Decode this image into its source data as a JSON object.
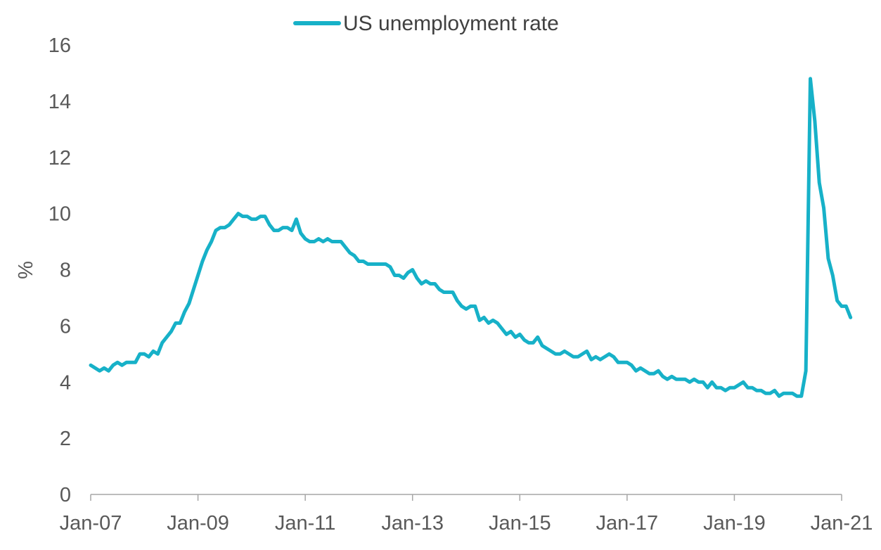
{
  "chart_data": {
    "type": "line",
    "title": "",
    "xlabel": "",
    "ylabel": "%",
    "ylim": [
      0,
      16
    ],
    "y_ticks": [
      "0",
      "2",
      "4",
      "6",
      "8",
      "10",
      "12",
      "14",
      "16"
    ],
    "x_ticks": [
      "Jan-07",
      "Jan-09",
      "Jan-11",
      "Jan-13",
      "Jan-15",
      "Jan-17",
      "Jan-19",
      "Jan-21"
    ],
    "x_range": [
      "2007-01",
      "2021-01"
    ],
    "grid": false,
    "legend_position": "top-center",
    "series": [
      {
        "name": "US unemployment rate",
        "color": "#17B1C8",
        "start": "2007-01",
        "frequency": "monthly",
        "values": [
          4.6,
          4.5,
          4.4,
          4.5,
          4.4,
          4.6,
          4.7,
          4.6,
          4.7,
          4.7,
          4.7,
          5.0,
          5.0,
          4.9,
          5.1,
          5.0,
          5.4,
          5.6,
          5.8,
          6.1,
          6.1,
          6.5,
          6.8,
          7.3,
          7.8,
          8.3,
          8.7,
          9.0,
          9.4,
          9.5,
          9.5,
          9.6,
          9.8,
          10.0,
          9.9,
          9.9,
          9.8,
          9.8,
          9.9,
          9.9,
          9.6,
          9.4,
          9.4,
          9.5,
          9.5,
          9.4,
          9.8,
          9.3,
          9.1,
          9.0,
          9.0,
          9.1,
          9.0,
          9.1,
          9.0,
          9.0,
          9.0,
          8.8,
          8.6,
          8.5,
          8.3,
          8.3,
          8.2,
          8.2,
          8.2,
          8.2,
          8.2,
          8.1,
          7.8,
          7.8,
          7.7,
          7.9,
          8.0,
          7.7,
          7.5,
          7.6,
          7.5,
          7.5,
          7.3,
          7.2,
          7.2,
          7.2,
          6.9,
          6.7,
          6.6,
          6.7,
          6.7,
          6.2,
          6.3,
          6.1,
          6.2,
          6.1,
          5.9,
          5.7,
          5.8,
          5.6,
          5.7,
          5.5,
          5.4,
          5.4,
          5.6,
          5.3,
          5.2,
          5.1,
          5.0,
          5.0,
          5.1,
          5.0,
          4.9,
          4.9,
          5.0,
          5.1,
          4.8,
          4.9,
          4.8,
          4.9,
          5.0,
          4.9,
          4.7,
          4.7,
          4.7,
          4.6,
          4.4,
          4.5,
          4.4,
          4.3,
          4.3,
          4.4,
          4.2,
          4.1,
          4.2,
          4.1,
          4.1,
          4.1,
          4.0,
          4.1,
          4.0,
          4.0,
          3.8,
          4.0,
          3.8,
          3.8,
          3.7,
          3.8,
          3.8,
          3.9,
          4.0,
          3.8,
          3.8,
          3.7,
          3.7,
          3.6,
          3.6,
          3.7,
          3.5,
          3.6,
          3.6,
          3.6,
          3.5,
          3.5,
          4.4,
          14.8,
          13.3,
          11.1,
          10.2,
          8.4,
          7.8,
          6.9,
          6.7,
          6.7,
          6.3
        ]
      }
    ]
  }
}
